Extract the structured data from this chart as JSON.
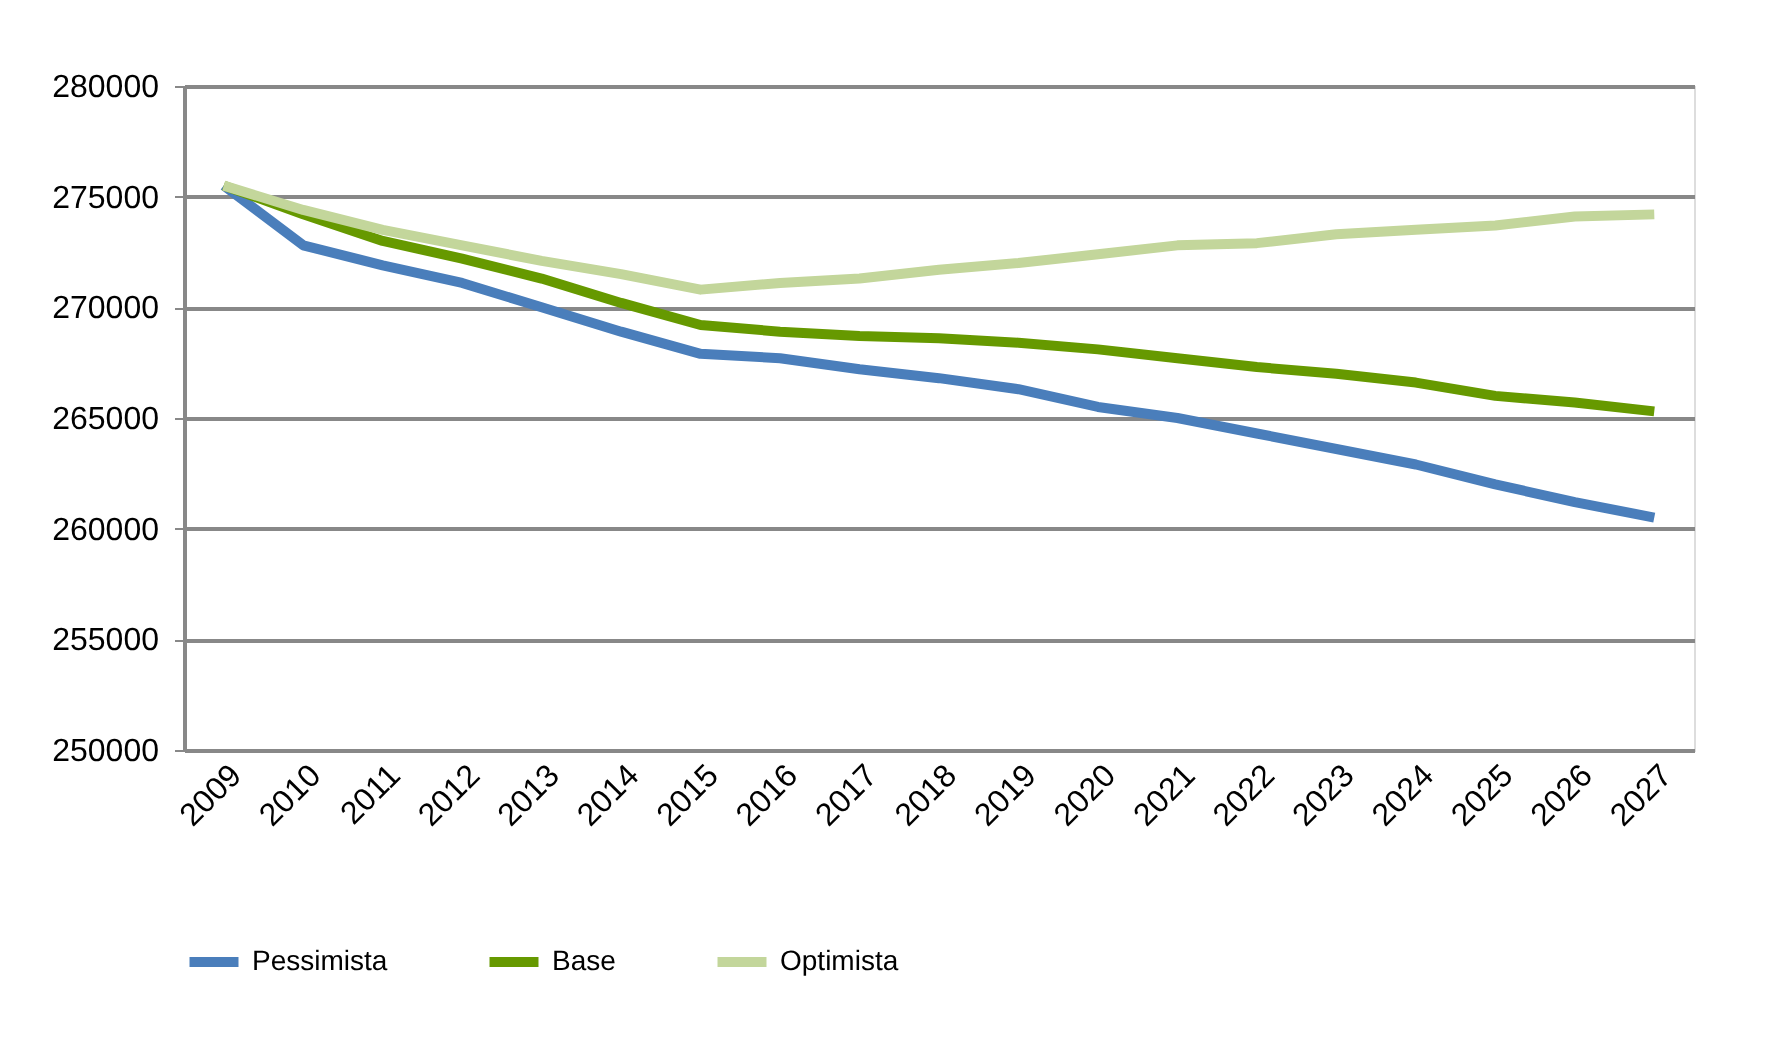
{
  "chart_data": {
    "type": "line",
    "categories": [
      "2009",
      "2010",
      "2011",
      "2012",
      "2013",
      "2014",
      "2015",
      "2016",
      "2017",
      "2018",
      "2019",
      "2020",
      "2021",
      "2022",
      "2023",
      "2024",
      "2025",
      "2026",
      "2027"
    ],
    "series": [
      {
        "name": "Pessimista",
        "color": "#4a7ebb",
        "values": [
          275500,
          272800,
          271900,
          271100,
          270000,
          268900,
          267900,
          267700,
          267200,
          266800,
          266300,
          265500,
          265000,
          264300,
          263600,
          262900,
          262000,
          261200,
          260500
        ]
      },
      {
        "name": "Base",
        "color": "#669900",
        "values": [
          275500,
          274200,
          273000,
          272200,
          271300,
          270200,
          269200,
          268900,
          268700,
          268600,
          268400,
          268100,
          267700,
          267300,
          267000,
          266600,
          266000,
          265700,
          265300
        ]
      },
      {
        "name": "Optimista",
        "color": "#c3d69b",
        "values": [
          275500,
          274400,
          273500,
          272800,
          272100,
          271500,
          270800,
          271100,
          271300,
          271700,
          272000,
          272400,
          272800,
          272900,
          273300,
          273500,
          273700,
          274100,
          274200
        ]
      }
    ],
    "ylim": [
      250000,
      280000
    ],
    "yticks": [
      250000,
      255000,
      260000,
      265000,
      270000,
      275000,
      280000
    ],
    "grid": "y",
    "legend": "bottom",
    "marker": "none",
    "line_style": "solid"
  }
}
